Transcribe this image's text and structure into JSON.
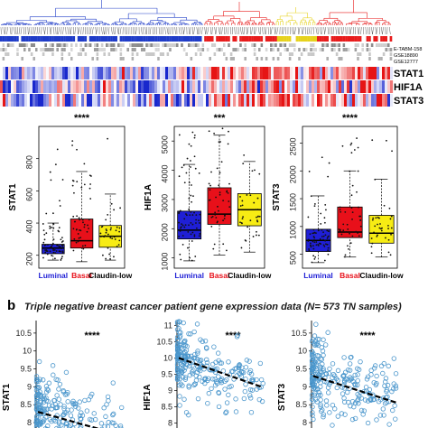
{
  "heatmap": {
    "dataset_labels": [
      "E-TABM-158",
      "GSE18890",
      "GSE12777"
    ],
    "gene_labels": [
      "STAT1",
      "HIF1A",
      "STAT3"
    ]
  },
  "panel_b": {
    "label": "b",
    "title": "Triple negative breast cancer patient gene expression  data  (N= 573 TN samples)"
  },
  "colors": {
    "luminal": "#1f1fd6",
    "basal": "#e8101a",
    "claudin_low": "#f7ec14",
    "scatter_point": "#4a96cc",
    "dendro_blue": "#1f3cc8",
    "dendro_red": "#e81c1c",
    "dendro_yellow": "#e6d21c"
  },
  "chart_data": [
    {
      "type": "box",
      "ylabel": "STAT1",
      "significance": "****",
      "categories": [
        "Luminal",
        "Basal",
        "Claudin-low"
      ],
      "yticks": [
        200,
        400,
        600,
        800
      ],
      "ylim": [
        120,
        1000
      ],
      "boxes": [
        {
          "min": 170,
          "q1": 210,
          "median": 245,
          "q3": 268,
          "max": 400
        },
        {
          "min": 160,
          "q1": 245,
          "median": 290,
          "q3": 425,
          "max": 720
        },
        {
          "min": 170,
          "q1": 250,
          "median": 318,
          "q3": 385,
          "max": 580
        }
      ]
    },
    {
      "type": "box",
      "ylabel": "HIF1A",
      "significance": "***",
      "categories": [
        "Luminal",
        "Basal",
        "Claudin-low"
      ],
      "yticks": [
        1000,
        2000,
        3000,
        4000,
        5000
      ],
      "ylim": [
        650,
        5500
      ],
      "boxes": [
        {
          "min": 900,
          "q1": 1650,
          "median": 1950,
          "q3": 2600,
          "max": 4200
        },
        {
          "min": 1100,
          "q1": 2150,
          "median": 2500,
          "q3": 3400,
          "max": 5200
        },
        {
          "min": 1200,
          "q1": 2100,
          "median": 2650,
          "q3": 3200,
          "max": 4300
        }
      ]
    },
    {
      "type": "box",
      "ylabel": "STAT3",
      "significance": "****",
      "categories": [
        "Luminal",
        "Basal",
        "Claudin-low"
      ],
      "yticks": [
        500,
        1000,
        1500,
        2000,
        2500
      ],
      "ylim": [
        250,
        2800
      ],
      "boxes": [
        {
          "min": 350,
          "q1": 550,
          "median": 750,
          "q3": 950,
          "max": 1550
        },
        {
          "min": 450,
          "q1": 800,
          "median": 900,
          "q3": 1350,
          "max": 2000
        },
        {
          "min": 450,
          "q1": 700,
          "median": 880,
          "q3": 1200,
          "max": 1850
        }
      ]
    },
    {
      "type": "scatter",
      "ylabel": "STAT1",
      "significance": "****",
      "yticks": [
        8,
        8.5,
        9,
        9.5,
        10,
        10.5
      ],
      "ylim": [
        7.85,
        10.85
      ],
      "xlim": [
        0,
        10
      ],
      "trend": [
        {
          "x": 0.2,
          "y": 8.3
        },
        {
          "x": 8.0,
          "y": 7.75
        }
      ]
    },
    {
      "type": "scatter",
      "ylabel": "HIF1A",
      "significance": "****",
      "yticks": [
        8,
        8.5,
        9,
        9.5,
        10,
        10.5,
        11
      ],
      "ylim": [
        7.85,
        11.15
      ],
      "xlim": [
        0,
        10
      ],
      "trend": [
        {
          "x": 0.2,
          "y": 10.0
        },
        {
          "x": 9.5,
          "y": 9.1
        }
      ]
    },
    {
      "type": "scatter",
      "ylabel": "STAT3",
      "significance": "****",
      "yticks": [
        8,
        8.5,
        9,
        9.5,
        10,
        10.5
      ],
      "ylim": [
        7.85,
        10.85
      ],
      "xlim": [
        0,
        10
      ],
      "trend": [
        {
          "x": 0.2,
          "y": 9.3
        },
        {
          "x": 9.5,
          "y": 8.55
        }
      ]
    }
  ]
}
